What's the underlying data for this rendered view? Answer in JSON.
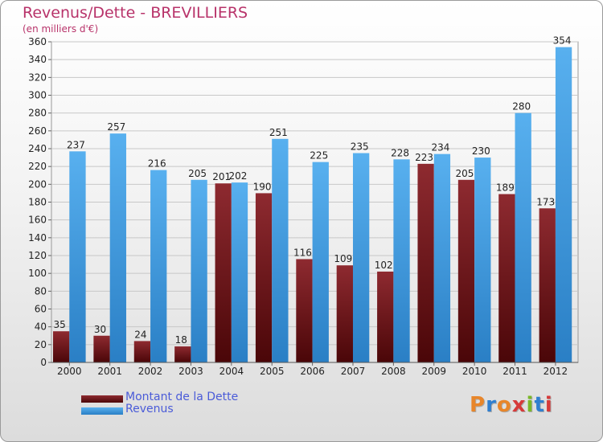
{
  "title": "Revenus/Dette - BREVILLIERS",
  "subtitle": "(en milliers d'€)",
  "colors": {
    "dette": "#7a1a1f",
    "revenus": "#4ba3e6",
    "title": "#b8336a",
    "legend_text": "#4a5bd8"
  },
  "logo": {
    "text": "Proxiti"
  },
  "chart_data": {
    "type": "bar",
    "categories": [
      "2000",
      "2001",
      "2002",
      "2003",
      "2004",
      "2005",
      "2006",
      "2007",
      "2008",
      "2009",
      "2010",
      "2011",
      "2012"
    ],
    "series": [
      {
        "name": "Montant de la Dette",
        "values": [
          35,
          30,
          24,
          18,
          201,
          190,
          116,
          109,
          102,
          223,
          205,
          189,
          173
        ]
      },
      {
        "name": "Revenus",
        "values": [
          237,
          257,
          216,
          205,
          202,
          251,
          225,
          235,
          228,
          234,
          230,
          280,
          354
        ]
      }
    ],
    "title": "Revenus/Dette - BREVILLIERS",
    "ylabel": "(en milliers d'€)",
    "xlabel": "",
    "ylim": [
      0,
      360
    ],
    "yticks": [
      0,
      20,
      40,
      60,
      80,
      100,
      120,
      140,
      160,
      180,
      200,
      220,
      240,
      260,
      280,
      300,
      320,
      340,
      360
    ],
    "grid": true,
    "legend": "bottom-left"
  }
}
